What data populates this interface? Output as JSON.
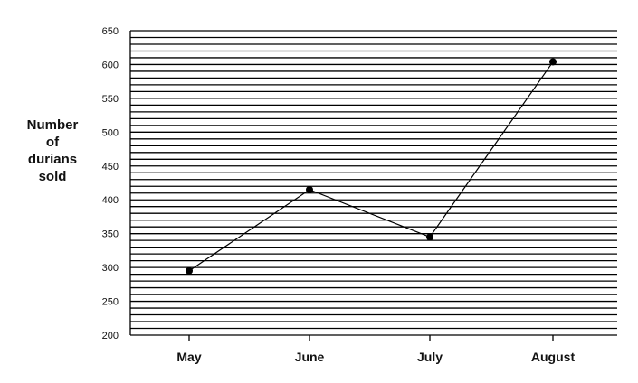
{
  "chart_data": {
    "type": "line",
    "title": "",
    "xlabel": "",
    "ylabel": "Number of durians sold",
    "ylabel_lines": [
      "Number",
      "of",
      "durians",
      "sold"
    ],
    "categories": [
      "May",
      "June",
      "July",
      "August"
    ],
    "values": [
      295,
      415,
      345,
      604
    ],
    "ylim": [
      200,
      650
    ],
    "y_major_step": 50,
    "y_minor_step": 10,
    "yticks": [
      "200",
      "250",
      "300",
      "350",
      "400",
      "450",
      "500",
      "550",
      "600",
      "650"
    ],
    "grid": "horizontal lines every 10",
    "legend": "none"
  },
  "colors": {
    "line": "#000000",
    "grid": "#000000",
    "text": "#111111",
    "background": "#ffffff"
  }
}
